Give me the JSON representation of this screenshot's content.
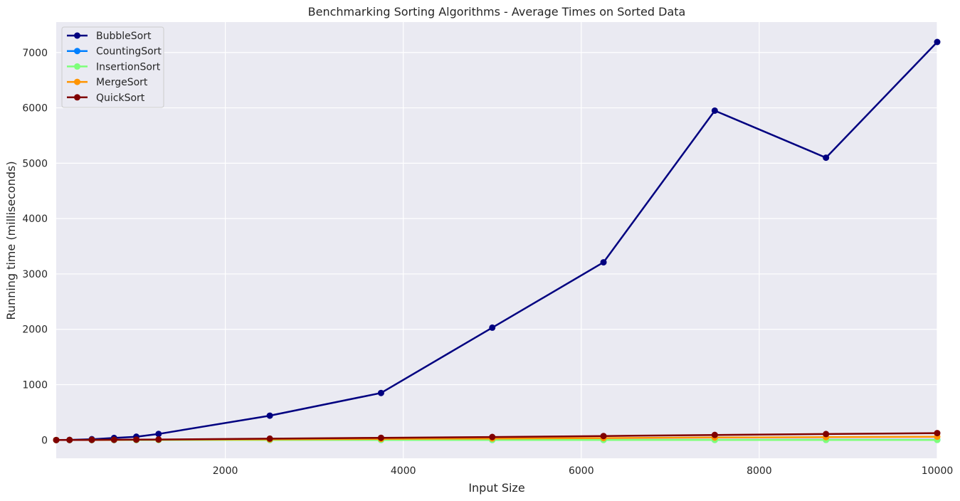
{
  "chart_data": {
    "type": "line",
    "title": "Benchmarking Sorting Algorithms - Average Times on Sorted Data",
    "xlabel": "Input Size",
    "ylabel": "Running time (milliseconds)",
    "xlim": [
      100,
      10000
    ],
    "ylim": [
      -330,
      7550
    ],
    "xticks": [
      2000,
      4000,
      6000,
      8000,
      10000
    ],
    "yticks": [
      0,
      1000,
      2000,
      3000,
      4000,
      5000,
      6000,
      7000
    ],
    "grid": true,
    "legend_position": "top-left",
    "x": [
      100,
      250,
      500,
      750,
      1000,
      1250,
      2500,
      3750,
      5000,
      6250,
      7500,
      8750,
      10000
    ],
    "series": [
      {
        "name": "BubbleSort",
        "color": "#000080",
        "values": [
          0,
          3,
          15,
          38,
          60,
          110,
          440,
          850,
          2030,
          3210,
          5950,
          5100,
          7190
        ]
      },
      {
        "name": "CountingSort",
        "color": "#0080ff",
        "values": [
          0,
          0,
          0,
          0,
          0,
          1,
          1,
          2,
          2,
          3,
          3,
          4,
          4
        ]
      },
      {
        "name": "InsertionSort",
        "color": "#7dff7a",
        "values": [
          0,
          0,
          0,
          0,
          0,
          0,
          1,
          1,
          1,
          1,
          2,
          2,
          2
        ]
      },
      {
        "name": "MergeSort",
        "color": "#ff9400",
        "values": [
          0,
          1,
          2,
          3,
          5,
          6,
          12,
          20,
          28,
          35,
          45,
          52,
          60
        ]
      },
      {
        "name": "QuickSort",
        "color": "#800000",
        "values": [
          0,
          1,
          3,
          5,
          8,
          10,
          25,
          40,
          55,
          72,
          92,
          108,
          125
        ]
      }
    ]
  }
}
